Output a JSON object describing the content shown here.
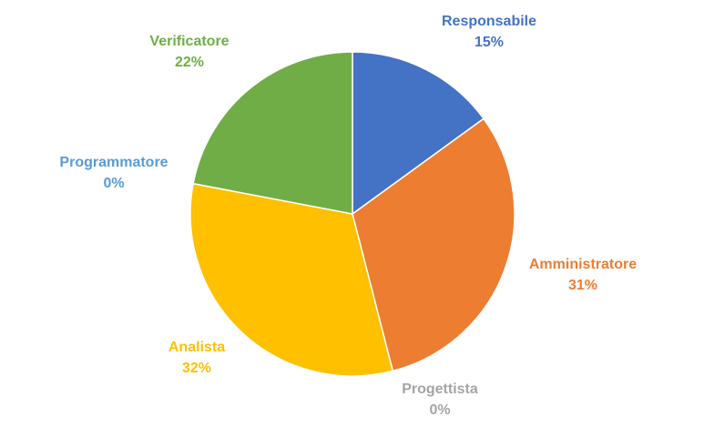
{
  "chart_data": {
    "type": "pie",
    "title": "",
    "start_angle_deg": 0,
    "direction": "clockwise",
    "legend": "none",
    "slices": [
      {
        "name": "Responsabile",
        "value": 15,
        "value_label": "15%",
        "color": "#4472C4"
      },
      {
        "name": "Amministratore",
        "value": 31,
        "value_label": "31%",
        "color": "#ED7D31"
      },
      {
        "name": "Progettista",
        "value": 0,
        "value_label": "0%",
        "color": "#A5A5A5"
      },
      {
        "name": "Analista",
        "value": 32,
        "value_label": "32%",
        "color": "#FFC000"
      },
      {
        "name": "Programmatore",
        "value": 0,
        "value_label": "0%",
        "color": "#5B9BD5"
      },
      {
        "name": "Verificatore",
        "value": 22,
        "value_label": "22%",
        "color": "#70AD47"
      }
    ]
  }
}
